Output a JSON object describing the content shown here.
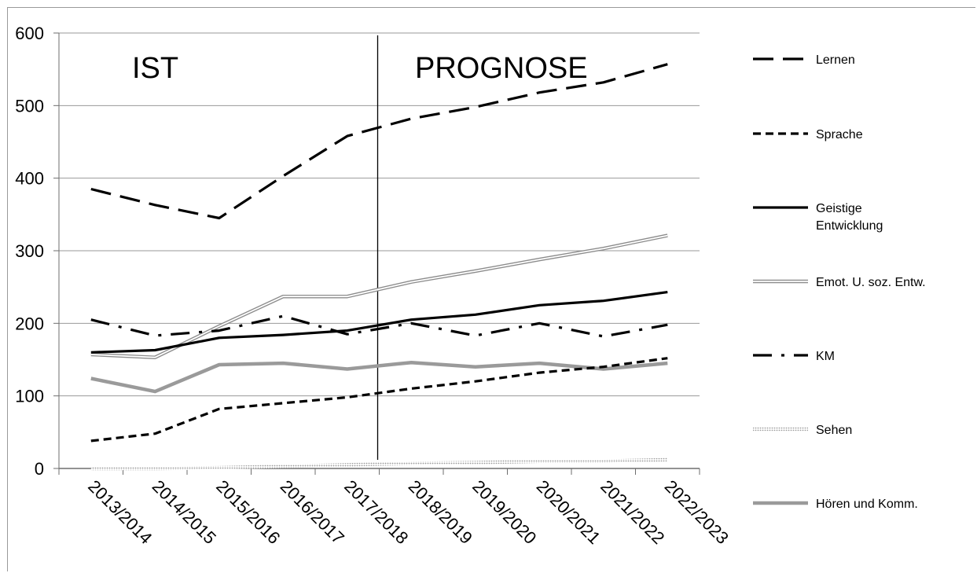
{
  "chart_data": {
    "type": "line",
    "title": "",
    "xlabel": "",
    "ylabel": "",
    "categories": [
      "2013/2014",
      "2014/2015",
      "2015/2016",
      "2016/2017",
      "2017/2018",
      "2018/2019",
      "2019/2020",
      "2020/2021",
      "2021/2022",
      "2022/2023"
    ],
    "ylim": [
      0,
      600
    ],
    "yticks": [
      "0",
      "100",
      "200",
      "300",
      "400",
      "500",
      "600"
    ],
    "grid": true,
    "legend_position": "right",
    "divider_after_category": "2017/2018",
    "regions": [
      {
        "label": "IST"
      },
      {
        "label": "PROGNOSE"
      }
    ],
    "series": [
      {
        "name": "Lernen",
        "style": "long-dash",
        "color": "#000000",
        "values": [
          385,
          363,
          345,
          403,
          458,
          482,
          498,
          518,
          532,
          557
        ]
      },
      {
        "name": "Sprache",
        "style": "short-dash",
        "color": "#000000",
        "values": [
          38,
          48,
          82,
          90,
          98,
          110,
          120,
          132,
          140,
          152
        ]
      },
      {
        "name": "Geistige Entwicklung",
        "style": "solid",
        "color": "#000000",
        "values": [
          160,
          163,
          180,
          184,
          190,
          205,
          212,
          225,
          231,
          243
        ]
      },
      {
        "name": "Emot. U. soz. Entw.",
        "style": "double",
        "color": "#8c8c8c",
        "values": [
          157,
          153,
          196,
          237,
          237,
          257,
          272,
          288,
          303,
          321
        ]
      },
      {
        "name": "KM",
        "style": "dash-dot",
        "color": "#000000",
        "values": [
          205,
          183,
          190,
          210,
          185,
          200,
          183,
          200,
          182,
          198
        ]
      },
      {
        "name": "Sehen",
        "style": "dotted",
        "color": "#c8c8c8",
        "values": [
          0,
          0,
          1,
          3,
          5,
          7,
          8,
          10,
          10,
          12
        ]
      },
      {
        "name": "Hören und Komm.",
        "style": "gray-thick",
        "color": "#9a9a9a",
        "values": [
          124,
          106,
          143,
          145,
          137,
          146,
          140,
          145,
          137,
          145
        ]
      }
    ]
  }
}
